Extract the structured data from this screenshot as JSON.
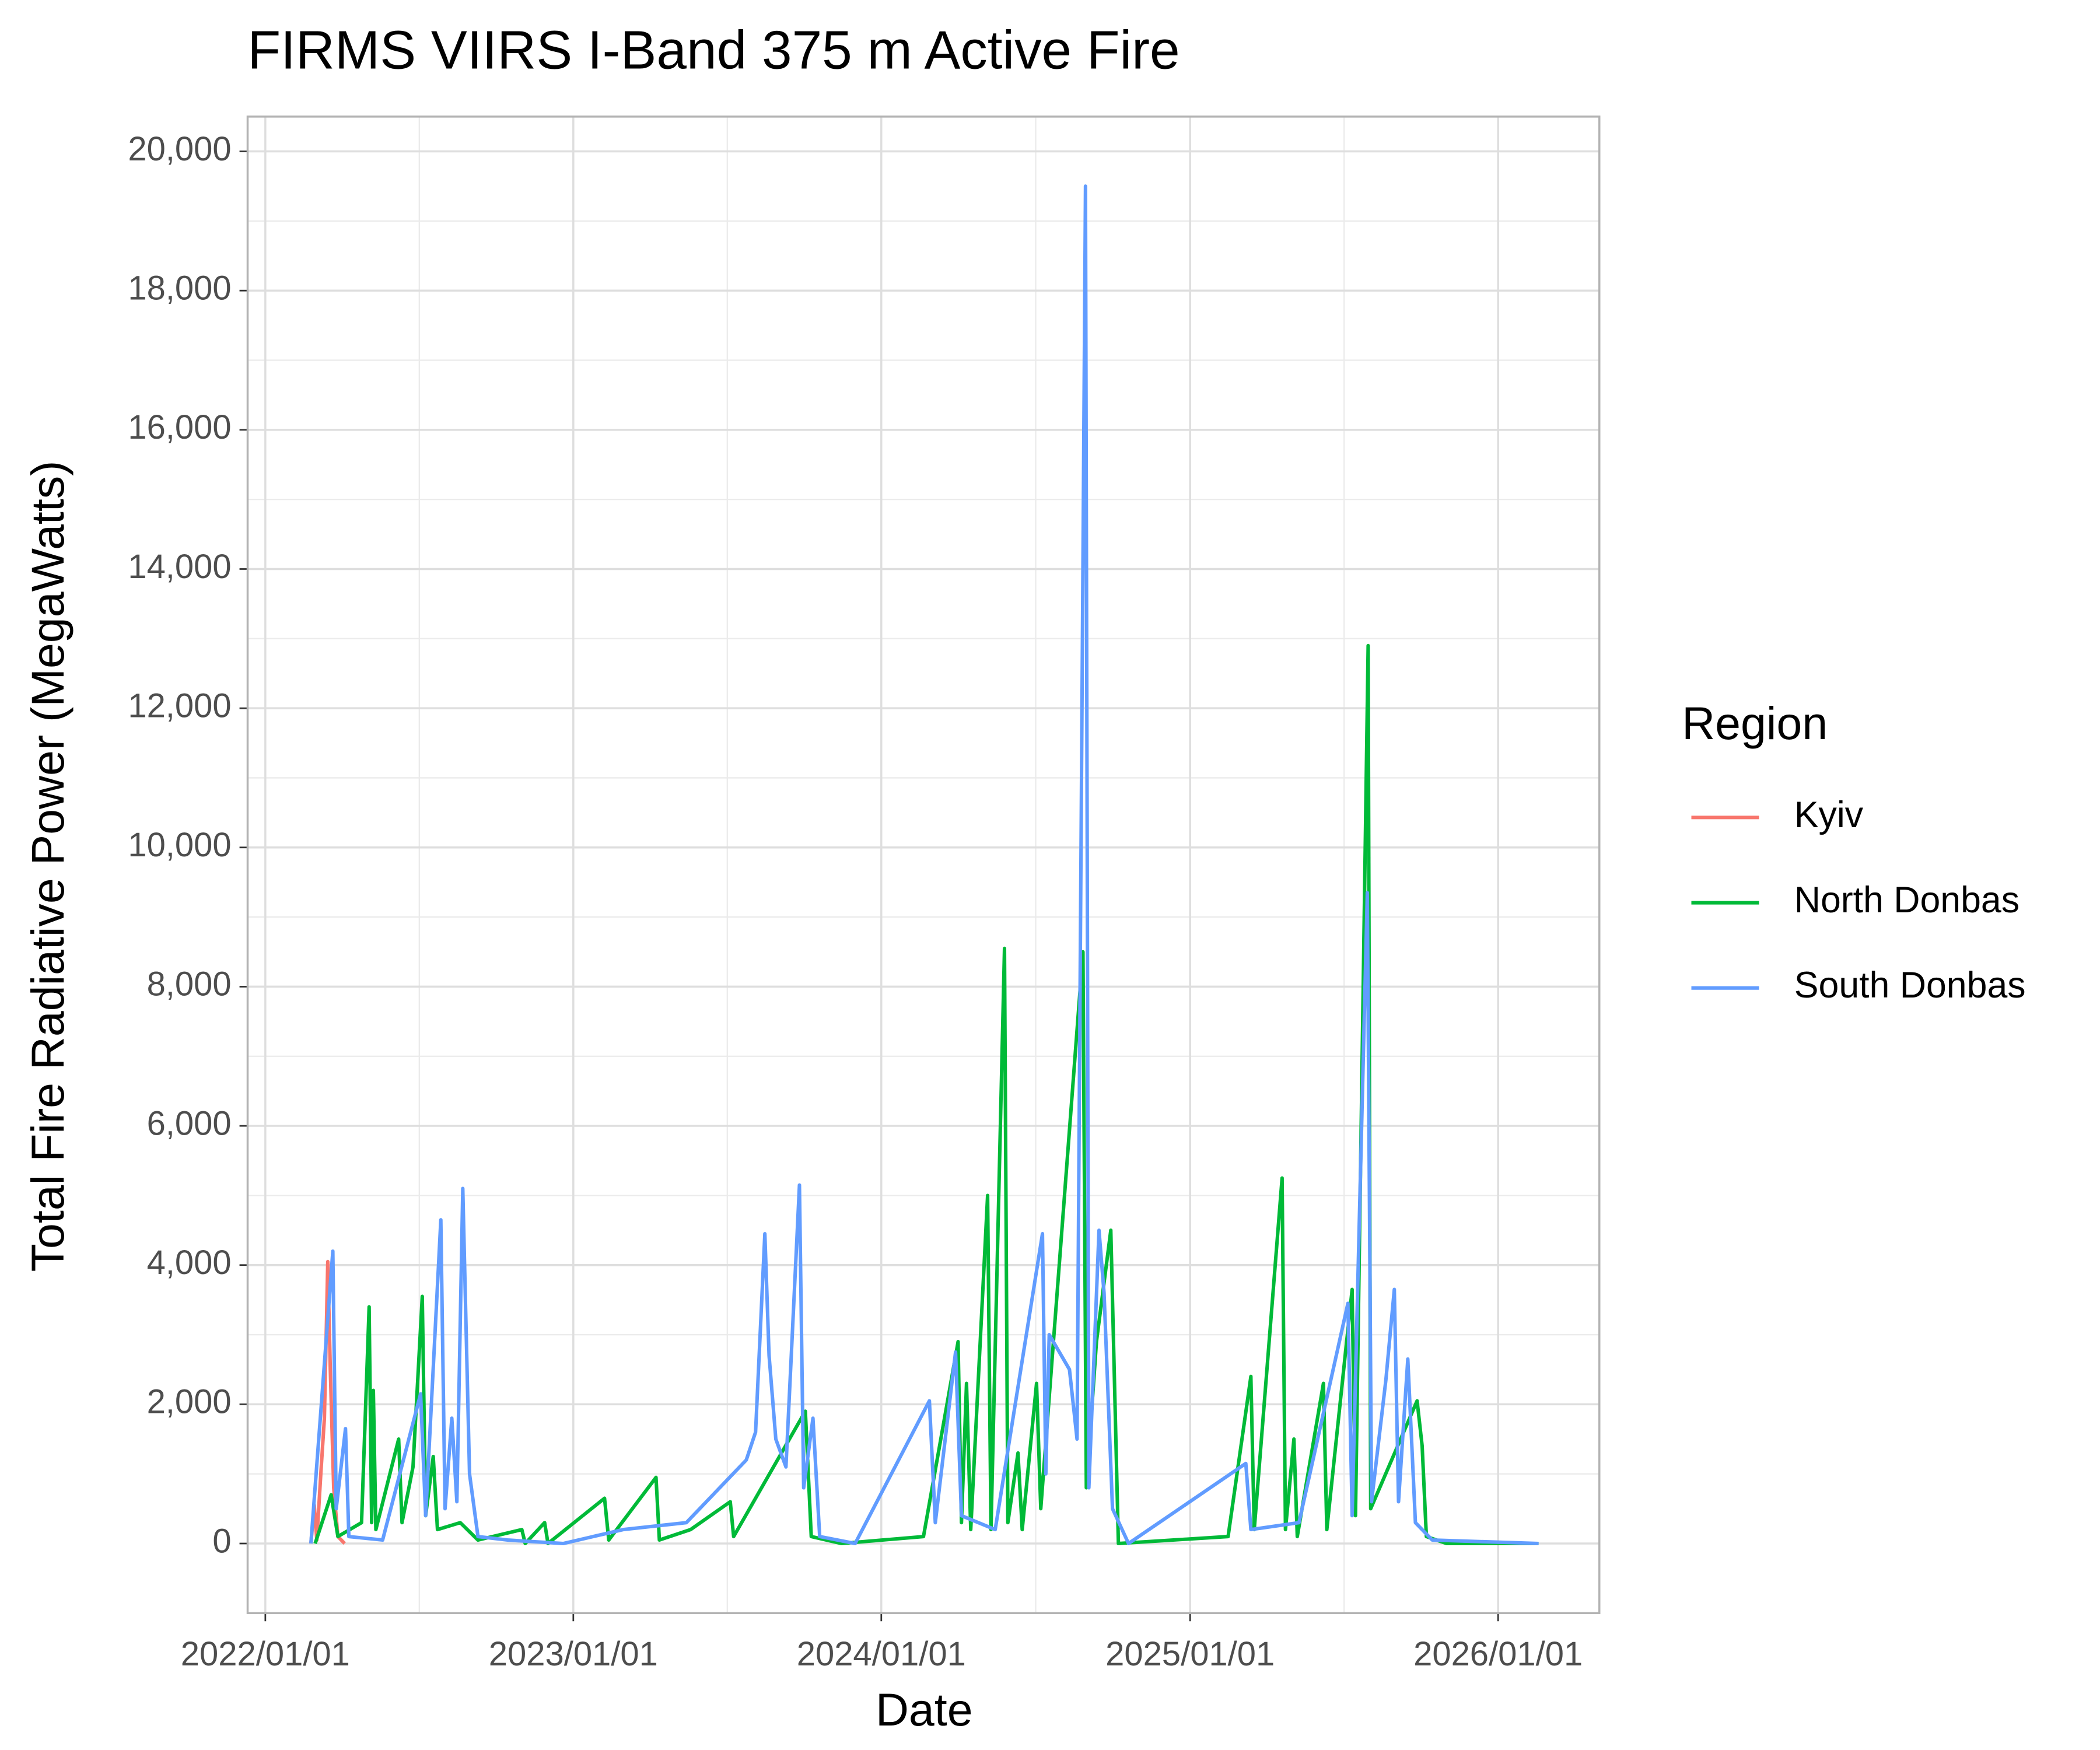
{
  "chart_data": {
    "type": "line",
    "title": "FIRMS VIIRS I-Band 375 m Active Fire",
    "x_label": "Date",
    "y_label": "Total Fire Radiative Power (MegaWatts)",
    "legend_title": "Region",
    "legend": "right",
    "grid": true,
    "minor_grid": true,
    "xlim": [
      "2021/12/11",
      "2026/05/01"
    ],
    "xticks": [
      "2022/01/01",
      "2023/01/01",
      "2024/01/01",
      "2025/01/01",
      "2026/01/01"
    ],
    "ylim": [
      -1000,
      20500
    ],
    "yticks": [
      0,
      {
        "value": 2000,
        "label": "2,000"
      },
      {
        "value": 4000,
        "label": "4,000"
      },
      {
        "value": 6000,
        "label": "6,000"
      },
      {
        "value": 8000,
        "label": "8,000"
      },
      {
        "value": 10000,
        "label": "10,000"
      },
      {
        "value": 12000,
        "label": "12,000"
      },
      {
        "value": 14000,
        "label": "14,000"
      },
      {
        "value": 16000,
        "label": "16,000"
      },
      {
        "value": 18000,
        "label": "18,000"
      },
      {
        "value": 20000,
        "label": "20,000"
      }
    ],
    "series": [
      {
        "name": "Kyiv",
        "color": "#f8766d",
        "x": [
          "2022/02/24",
          "2022/02/28",
          "2022/03/03",
          "2022/03/08",
          "2022/03/12",
          "2022/03/16",
          "2022/03/19",
          "2022/03/23",
          "2022/03/28",
          "2022/04/05"
        ],
        "values": [
          0,
          550,
          50,
          1050,
          1800,
          4050,
          2500,
          800,
          100,
          0
        ]
      },
      {
        "name": "North Donbas",
        "color": "#00ba38",
        "x": [
          "2022/03/01",
          "2022/03/20",
          "2022/03/28",
          "2022/04/25",
          "2022/05/04",
          "2022/05/07",
          "2022/05/09",
          "2022/05/12",
          "2022/06/08",
          "2022/06/12",
          "2022/06/25",
          "2022/07/06",
          "2022/07/10",
          "2022/07/19",
          "2022/07/24",
          "2022/08/20",
          "2022/09/10",
          "2022/11/01",
          "2022/11/05",
          "2022/11/28",
          "2022/12/02",
          "2023/02/07",
          "2023/02/12",
          "2023/04/09",
          "2023/04/13",
          "2023/05/20",
          "2023/07/06",
          "2023/07/10",
          "2023/10/03",
          "2023/10/10",
          "2023/11/15",
          "2024/02/20",
          "2024/04/01",
          "2024/04/05",
          "2024/04/11",
          "2024/04/16",
          "2024/05/06",
          "2024/05/10",
          "2024/05/26",
          "2024/05/30",
          "2024/06/11",
          "2024/06/16",
          "2024/07/03",
          "2024/07/08",
          "2024/08/27",
          "2024/08/31",
          "2024/09/12",
          "2024/09/29",
          "2024/10/05",
          "2024/10/08",
          "2025/02/15",
          "2025/03/14",
          "2025/03/18",
          "2025/04/20",
          "2025/04/24",
          "2025/05/04",
          "2025/05/08",
          "2025/06/08",
          "2025/06/12",
          "2025/07/12",
          "2025/07/16",
          "2025/07/31",
          "2025/08/03",
          "2025/09/27",
          "2025/10/03",
          "2025/10/08",
          "2025/11/01",
          "2026/02/18"
        ],
        "values": [
          0,
          700,
          100,
          300,
          3400,
          300,
          2200,
          200,
          1500,
          300,
          1100,
          3550,
          400,
          1250,
          200,
          300,
          50,
          200,
          0,
          300,
          0,
          650,
          50,
          950,
          50,
          200,
          600,
          100,
          1900,
          100,
          0,
          100,
          2900,
          300,
          2300,
          200,
          5000,
          200,
          8550,
          300,
          1300,
          200,
          2300,
          500,
          8500,
          800,
          2900,
          4500,
          1500,
          0,
          100,
          2400,
          200,
          5250,
          200,
          1500,
          100,
          2300,
          200,
          3650,
          400,
          12900,
          500,
          2050,
          1400,
          100,
          0,
          0
        ]
      },
      {
        "name": "South Donbas",
        "color": "#619cff",
        "x": [
          "2022/02/24",
          "2022/03/22",
          "2022/03/26",
          "2022/04/06",
          "2022/04/10",
          "2022/05/20",
          "2022/07/04",
          "2022/07/10",
          "2022/07/28",
          "2022/08/02",
          "2022/08/10",
          "2022/08/16",
          "2022/08/23",
          "2022/08/31",
          "2022/09/10",
          "2022/10/15",
          "2022/12/20",
          "2023/03/01",
          "2023/05/15",
          "2023/07/25",
          "2023/08/05",
          "2023/08/16",
          "2023/08/21",
          "2023/08/29",
          "2023/09/10",
          "2023/09/26",
          "2023/10/01",
          "2023/10/12",
          "2023/10/20",
          "2023/12/01",
          "2024/02/27",
          "2024/03/05",
          "2024/03/29",
          "2024/04/05",
          "2024/05/15",
          "2024/07/10",
          "2024/07/14",
          "2024/07/18",
          "2024/08/11",
          "2024/08/20",
          "2024/08/30",
          "2024/09/03",
          "2024/09/15",
          "2024/09/21",
          "2024/10/01",
          "2024/10/20",
          "2025/03/08",
          "2025/03/14",
          "2025/05/10",
          "2025/07/07",
          "2025/07/12",
          "2025/07/30",
          "2025/08/04",
          "2025/08/21",
          "2025/08/31",
          "2025/09/05",
          "2025/09/16",
          "2025/09/25",
          "2025/10/15",
          "2026/02/18"
        ],
        "values": [
          0,
          4200,
          500,
          1650,
          100,
          50,
          2150,
          400,
          4650,
          500,
          1800,
          600,
          5100,
          1000,
          100,
          50,
          0,
          200,
          300,
          1200,
          1600,
          4450,
          2700,
          1500,
          1100,
          5150,
          800,
          1800,
          100,
          0,
          2050,
          300,
          2750,
          400,
          200,
          4450,
          1000,
          3000,
          2500,
          1500,
          19500,
          800,
          4500,
          3600,
          500,
          0,
          1150,
          200,
          300,
          3450,
          400,
          9350,
          600,
          2350,
          3650,
          600,
          2650,
          300,
          50,
          0
        ]
      }
    ]
  }
}
